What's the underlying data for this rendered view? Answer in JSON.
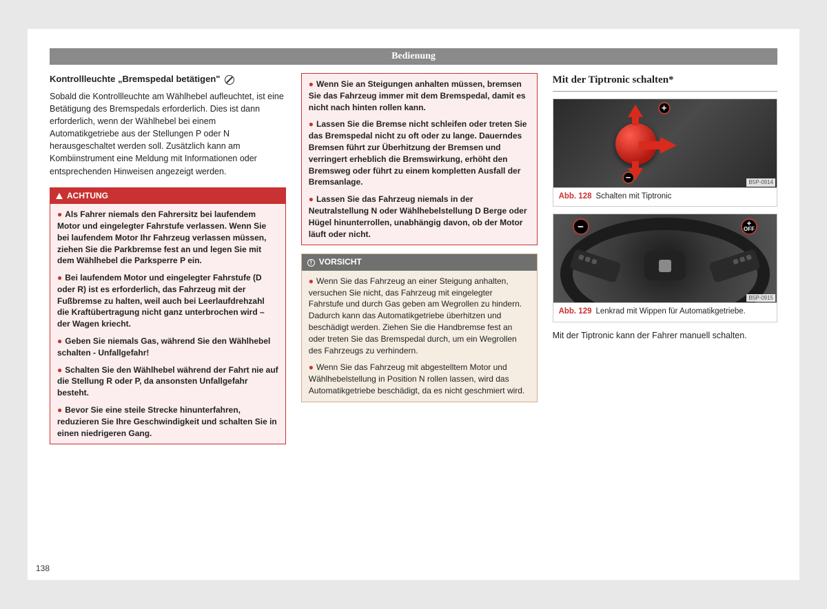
{
  "header": "Bedienung",
  "page_number": "138",
  "col1": {
    "subtitle": "Kontrollleuchte „Bremspedal betätigen\"",
    "body": "Sobald die Kontrollleuchte am Wählhebel aufleuchtet, ist eine Betätigung des Bremspedals erforderlich. Dies ist dann erforderlich, wenn der Wählhebel bei einem Automatikgetriebe aus der Stellungen P oder N herausgeschaltet werden soll. Zusätzlich kann am Kombiinstrument eine Meldung mit Informationen oder entsprechenden Hinweisen angezeigt werden.",
    "warn_title": "ACHTUNG",
    "warn_items": [
      "Als Fahrer niemals den Fahrersitz bei laufendem Motor und eingelegter Fahrstufe verlassen. Wenn Sie bei laufendem Motor Ihr Fahrzeug verlassen müssen, ziehen Sie die Parkbremse fest an und legen Sie mit dem Wählhebel die Parksperre P ein.",
      "Bei laufendem Motor und eingelegter Fahrstufe (D oder R) ist es erforderlich, das Fahrzeug mit der Fußbremse zu halten, weil auch bei Leerlaufdrehzahl die Kraftübertragung nicht ganz unterbrochen wird – der Wagen kriecht.",
      "Geben Sie niemals Gas, während Sie den Wählhebel schalten - Unfallgefahr!",
      "Schalten Sie den Wählhebel während der Fahrt nie auf die Stellung R oder P, da ansonsten Unfallgefahr besteht.",
      "Bevor Sie eine steile Strecke hinunterfahren, reduzieren Sie Ihre Geschwindigkeit und schalten Sie in einen niedrigeren Gang."
    ]
  },
  "col2": {
    "warn_cont": [
      "Wenn Sie an Steigungen anhalten müssen, bremsen Sie das Fahrzeug immer mit dem Bremspedal, damit es nicht nach hinten rollen kann.",
      "Lassen Sie die Bremse nicht schleifen oder treten Sie das Bremspedal nicht zu oft oder zu lange. Dauerndes Bremsen führt zur Überhitzung der Bremsen und verringert erheblich die Bremswirkung, erhöht den Bremsweg oder führt zu einem kompletten Ausfall der Bremsanlage.",
      "Lassen Sie das Fahrzeug niemals in der Neutralstellung N oder Wählhebelstellung D Berge oder Hügel hinunterrollen, unabhängig davon, ob der Motor läuft oder nicht."
    ],
    "care_title": "VORSICHT",
    "care_items": [
      "Wenn Sie das Fahrzeug an einer Steigung anhalten, versuchen Sie nicht, das Fahrzeug mit eingelegter Fahrstufe und durch Gas geben am Wegrollen zu hindern. Dadurch kann das Automatikgetriebe überhitzen und beschädigt werden. Ziehen Sie die Handbremse fest an oder treten Sie das Bremspedal durch, um ein Wegrollen des Fahrzeugs zu verhindern.",
      "Wenn Sie das Fahrzeug mit abgestelltem Motor und Wählhebelstellung in Position N rollen lassen, wird das Automatikgetriebe beschädigt, da es nicht geschmiert wird."
    ]
  },
  "col3": {
    "section": "Mit der Tiptronic schalten*",
    "fig1_ref": "Abb. 128",
    "fig1_cap": "Schalten mit Tiptronic",
    "fig1_code": "B5P-0914",
    "fig2_ref": "Abb. 129",
    "fig2_cap": "Lenkrad mit Wippen für Automatikgetriebe.",
    "fig2_code": "B5P-0915",
    "tail": "Mit der Tiptronic kann der Fahrer manuell schalten."
  }
}
